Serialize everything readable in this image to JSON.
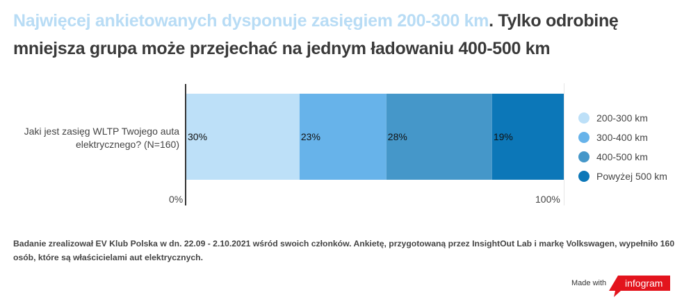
{
  "title": {
    "highlight": "Najwięcej ankietowanych dysponuje zasięgiem 200-300 km",
    "rest": ". Tylko odrobinę mniejsza grupa może przejechać na jednym ładowaniu 400-500 km",
    "highlight_color": "#b8dcf5"
  },
  "chart_data": {
    "type": "bar",
    "orientation": "horizontal",
    "stacked": true,
    "categories": [
      "Jaki jest zasięg WLTP Twojego auta elektrycznego? (N=160)"
    ],
    "series": [
      {
        "name": "200-300 km",
        "values": [
          30
        ],
        "label": "30%",
        "color": "#bde0f8"
      },
      {
        "name": "300-400 km",
        "values": [
          23
        ],
        "label": "23%",
        "color": "#67b3ea"
      },
      {
        "name": "400-500 km",
        "values": [
          28
        ],
        "label": "28%",
        "color": "#4597c9"
      },
      {
        "name": "Powyżej 500 km",
        "values": [
          19
        ],
        "label": "19%",
        "color": "#0c77b8"
      }
    ],
    "xlim": [
      0,
      100
    ],
    "x_ticks": [
      "0%",
      "100%"
    ],
    "legend_position": "right"
  },
  "footnote": "Badanie zrealizował EV Klub Polska w dn. 22.09 - 2.10.2021 wśród swoich członków. Ankietę, przygotowaną przez InsightOut Lab i markę Volkswagen, wypełniło 160 osób, które są właścicielami aut elektrycznych.",
  "branding": {
    "made_with": "Made with",
    "logo_text": "infogram",
    "logo_color": "#e3141d"
  }
}
